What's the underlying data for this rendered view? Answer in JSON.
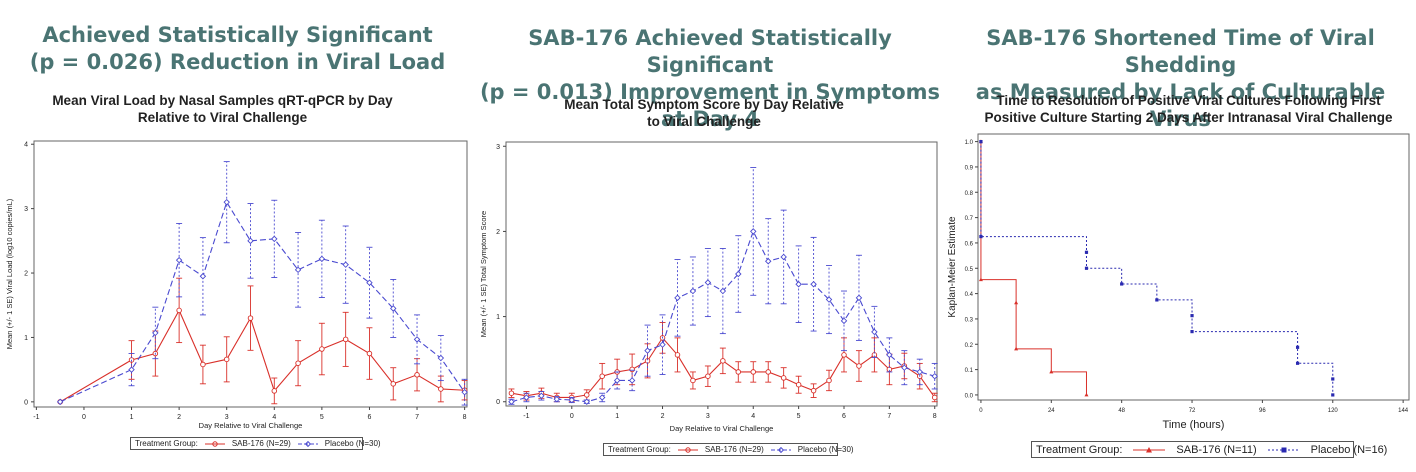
{
  "panels": [
    {
      "headline": [
        "Achieved Statistically Significant",
        "(p = 0.026) Reduction in Viral Load"
      ],
      "subtitle": [
        "Mean Viral Load by Nasal Samples qRT-qPCR by Day",
        "Relative to Viral Challenge"
      ]
    },
    {
      "headline": [
        "SAB-176 Achieved Statistically Significant",
        "(p = 0.013) Improvement  in Symptoms at Day 4"
      ],
      "subtitle": [
        "Mean Total Symptom Score by Day Relative",
        "to Viral Challenge"
      ]
    },
    {
      "headline": [
        "SAB-176 Shortened Time of Viral Shedding",
        "as Measured by Lack of Culturable Virus"
      ],
      "subtitle": [
        "Time to Resolution of Positive Viral Cultures Following First",
        "Positive Culture Starting 2 Days After Intranasal Viral Challenge"
      ]
    }
  ],
  "colors": {
    "sab": "#d9302a",
    "placebo": "#4a4ad0",
    "headline": "#4a7473"
  },
  "chart_data": [
    {
      "type": "line",
      "xlabel": "Day Relative to Viral Challenge",
      "ylabel": "Mean (+/- 1 SE) Viral Load (log10 copies/mL)",
      "xlim": [
        -1,
        8
      ],
      "ylim": [
        0,
        4
      ],
      "xticks": [
        "-1",
        "0",
        "1",
        "2",
        "3",
        "4",
        "5",
        "6",
        "7",
        "8"
      ],
      "yticks": [
        "0",
        "1",
        "2",
        "3",
        "4"
      ],
      "legend_title": "Treatment Group:",
      "series": [
        {
          "name": "SAB-176 (N=29)",
          "x": [
            -0.5,
            1,
            1.5,
            2,
            2.5,
            3,
            3.5,
            4,
            4.5,
            5,
            5.5,
            6,
            6.5,
            7,
            7.5,
            8
          ],
          "y": [
            0,
            0.65,
            0.75,
            1.42,
            0.58,
            0.66,
            1.3,
            0.17,
            0.6,
            0.82,
            0.97,
            0.75,
            0.28,
            0.42,
            0.2,
            0.18
          ],
          "err": [
            0,
            0.3,
            0.35,
            0.5,
            0.3,
            0.35,
            0.5,
            0.2,
            0.35,
            0.4,
            0.42,
            0.4,
            0.25,
            0.25,
            0.2,
            0.15
          ]
        },
        {
          "name": "Placebo (N=30)",
          "x": [
            -0.5,
            1,
            1.5,
            2,
            2.5,
            3,
            3.5,
            4,
            4.5,
            5,
            5.5,
            6,
            6.5,
            7,
            7.5,
            8
          ],
          "y": [
            0,
            0.5,
            1.07,
            2.2,
            1.95,
            3.1,
            2.5,
            2.53,
            2.05,
            2.22,
            2.13,
            1.85,
            1.45,
            0.97,
            0.68,
            0.15
          ],
          "err": [
            0,
            0.25,
            0.4,
            0.57,
            0.6,
            0.63,
            0.58,
            0.6,
            0.58,
            0.6,
            0.6,
            0.55,
            0.45,
            0.38,
            0.35,
            0.2
          ]
        }
      ]
    },
    {
      "type": "line",
      "xlabel": "Day Relative to Viral Challenge",
      "ylabel": "Mean (+/- 1 SE) Total Symptom Score",
      "xlim": [
        -1.33,
        8.1
      ],
      "ylim": [
        0,
        3
      ],
      "xticks": [
        "-1",
        "0",
        "1",
        "2",
        "3",
        "4",
        "5",
        "6",
        "7",
        "8"
      ],
      "yticks": [
        "0",
        "1",
        "2",
        "3"
      ],
      "legend_title": "Treatment Group:",
      "series": [
        {
          "name": "SAB-176 (N=29)",
          "x": [
            -1.33,
            -1,
            -0.67,
            -0.33,
            0,
            0.33,
            0.67,
            1,
            1.33,
            1.67,
            2,
            2.33,
            2.67,
            3,
            3.33,
            3.67,
            4,
            4.33,
            4.67,
            5,
            5.33,
            5.67,
            6,
            6.33,
            6.67,
            7,
            7.33,
            7.67,
            8
          ],
          "y": [
            0.1,
            0.07,
            0.1,
            0.05,
            0.05,
            0.08,
            0.3,
            0.35,
            0.38,
            0.48,
            0.75,
            0.55,
            0.25,
            0.3,
            0.48,
            0.35,
            0.35,
            0.35,
            0.28,
            0.2,
            0.13,
            0.25,
            0.55,
            0.42,
            0.55,
            0.38,
            0.42,
            0.3,
            0.05
          ],
          "err": [
            0.05,
            0.05,
            0.06,
            0.05,
            0.05,
            0.06,
            0.15,
            0.15,
            0.18,
            0.2,
            0.18,
            0.2,
            0.1,
            0.12,
            0.15,
            0.12,
            0.12,
            0.12,
            0.12,
            0.1,
            0.08,
            0.12,
            0.2,
            0.18,
            0.2,
            0.18,
            0.15,
            0.15,
            0.05
          ]
        },
        {
          "name": "Placebo (N=30)",
          "x": [
            -1.33,
            -1,
            -0.67,
            -0.33,
            0,
            0.33,
            0.67,
            1,
            1.33,
            1.67,
            2,
            2.33,
            2.67,
            3,
            3.33,
            3.67,
            4,
            4.33,
            4.67,
            5,
            5.33,
            5.67,
            6,
            6.33,
            6.67,
            7,
            7.33,
            7.67,
            8
          ],
          "y": [
            0,
            0.05,
            0.07,
            0.03,
            0.02,
            0,
            0.05,
            0.25,
            0.25,
            0.6,
            0.67,
            1.22,
            1.3,
            1.4,
            1.3,
            1.5,
            2.0,
            1.65,
            1.7,
            1.38,
            1.38,
            1.2,
            0.95,
            1.22,
            0.82,
            0.55,
            0.4,
            0.35,
            0.3
          ],
          "err": [
            0.03,
            0.05,
            0.05,
            0.03,
            0.03,
            0.02,
            0.05,
            0.1,
            0.12,
            0.3,
            0.35,
            0.45,
            0.4,
            0.4,
            0.5,
            0.45,
            0.75,
            0.5,
            0.55,
            0.45,
            0.55,
            0.4,
            0.35,
            0.5,
            0.3,
            0.2,
            0.2,
            0.15,
            0.15
          ]
        }
      ]
    },
    {
      "type": "line",
      "xlabel": "Time (hours)",
      "ylabel": "Kaplan-Meier Estimate",
      "xlim": [
        0,
        144
      ],
      "ylim": [
        0,
        1
      ],
      "xticks": [
        "0",
        "24",
        "48",
        "72",
        "96",
        "120",
        "144"
      ],
      "yticks": [
        "0.0",
        "0.1",
        "0.2",
        "0.3",
        "0.4",
        "0.5",
        "0.6",
        "0.7",
        "0.8",
        "0.9",
        "1.0"
      ],
      "legend_title": "Treatment Group:",
      "series": [
        {
          "name": "SAB-176 (N=11)",
          "step": true,
          "x": [
            0,
            0,
            12,
            12,
            24,
            36
          ],
          "y": [
            1.0,
            0.455,
            0.364,
            0.182,
            0.091,
            0.0
          ]
        },
        {
          "name": "Placebo (N=16)",
          "step": true,
          "x": [
            0,
            0,
            36,
            36,
            48,
            60,
            72,
            72,
            108,
            108,
            120,
            120
          ],
          "y": [
            1.0,
            0.625,
            0.563,
            0.5,
            0.438,
            0.375,
            0.313,
            0.25,
            0.188,
            0.125,
            0.063,
            0.0
          ]
        }
      ]
    }
  ]
}
